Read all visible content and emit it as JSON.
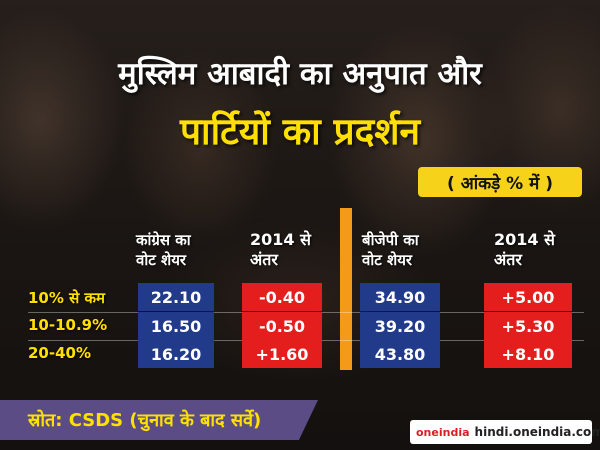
{
  "title_line1": "मुस्लिम आबादी का अनुपात और",
  "title_line2": "पार्टियों का प्रदर्शन",
  "unit_note": "( आंकड़े % में )",
  "columns": {
    "congress_share": [
      "कांग्रेस का",
      "वोट शेयर"
    ],
    "congress_diff": [
      "2014 से",
      "अंतर"
    ],
    "bjp_share": [
      "बीजेपी का",
      "वोट शेयर"
    ],
    "bjp_diff": [
      "2014 से",
      "अंतर"
    ]
  },
  "rows": [
    {
      "label": "10% से कम",
      "congress_share": "22.10",
      "congress_diff": "-0.40",
      "bjp_share": "34.90",
      "bjp_diff": "+5.00"
    },
    {
      "label": "10-10.9%",
      "congress_share": "16.50",
      "congress_diff": "-0.50",
      "bjp_share": "39.20",
      "bjp_diff": "+5.30"
    },
    {
      "label": "20-40%",
      "congress_share": "16.20",
      "congress_diff": "+1.60",
      "bjp_share": "43.80",
      "bjp_diff": "+8.10"
    }
  ],
  "source": "स्रोत: CSDS (चुनाव के बाद सर्वे)",
  "brand": {
    "logo": "oneindia",
    "site": "hindi.oneindia.com"
  },
  "colors": {
    "congress_cell": "#213a8a",
    "diff_cell": "#e41d1d",
    "bjp_cell": "#213a8a",
    "title_yellow": "#ffe000",
    "divider": "#f39a18"
  }
}
